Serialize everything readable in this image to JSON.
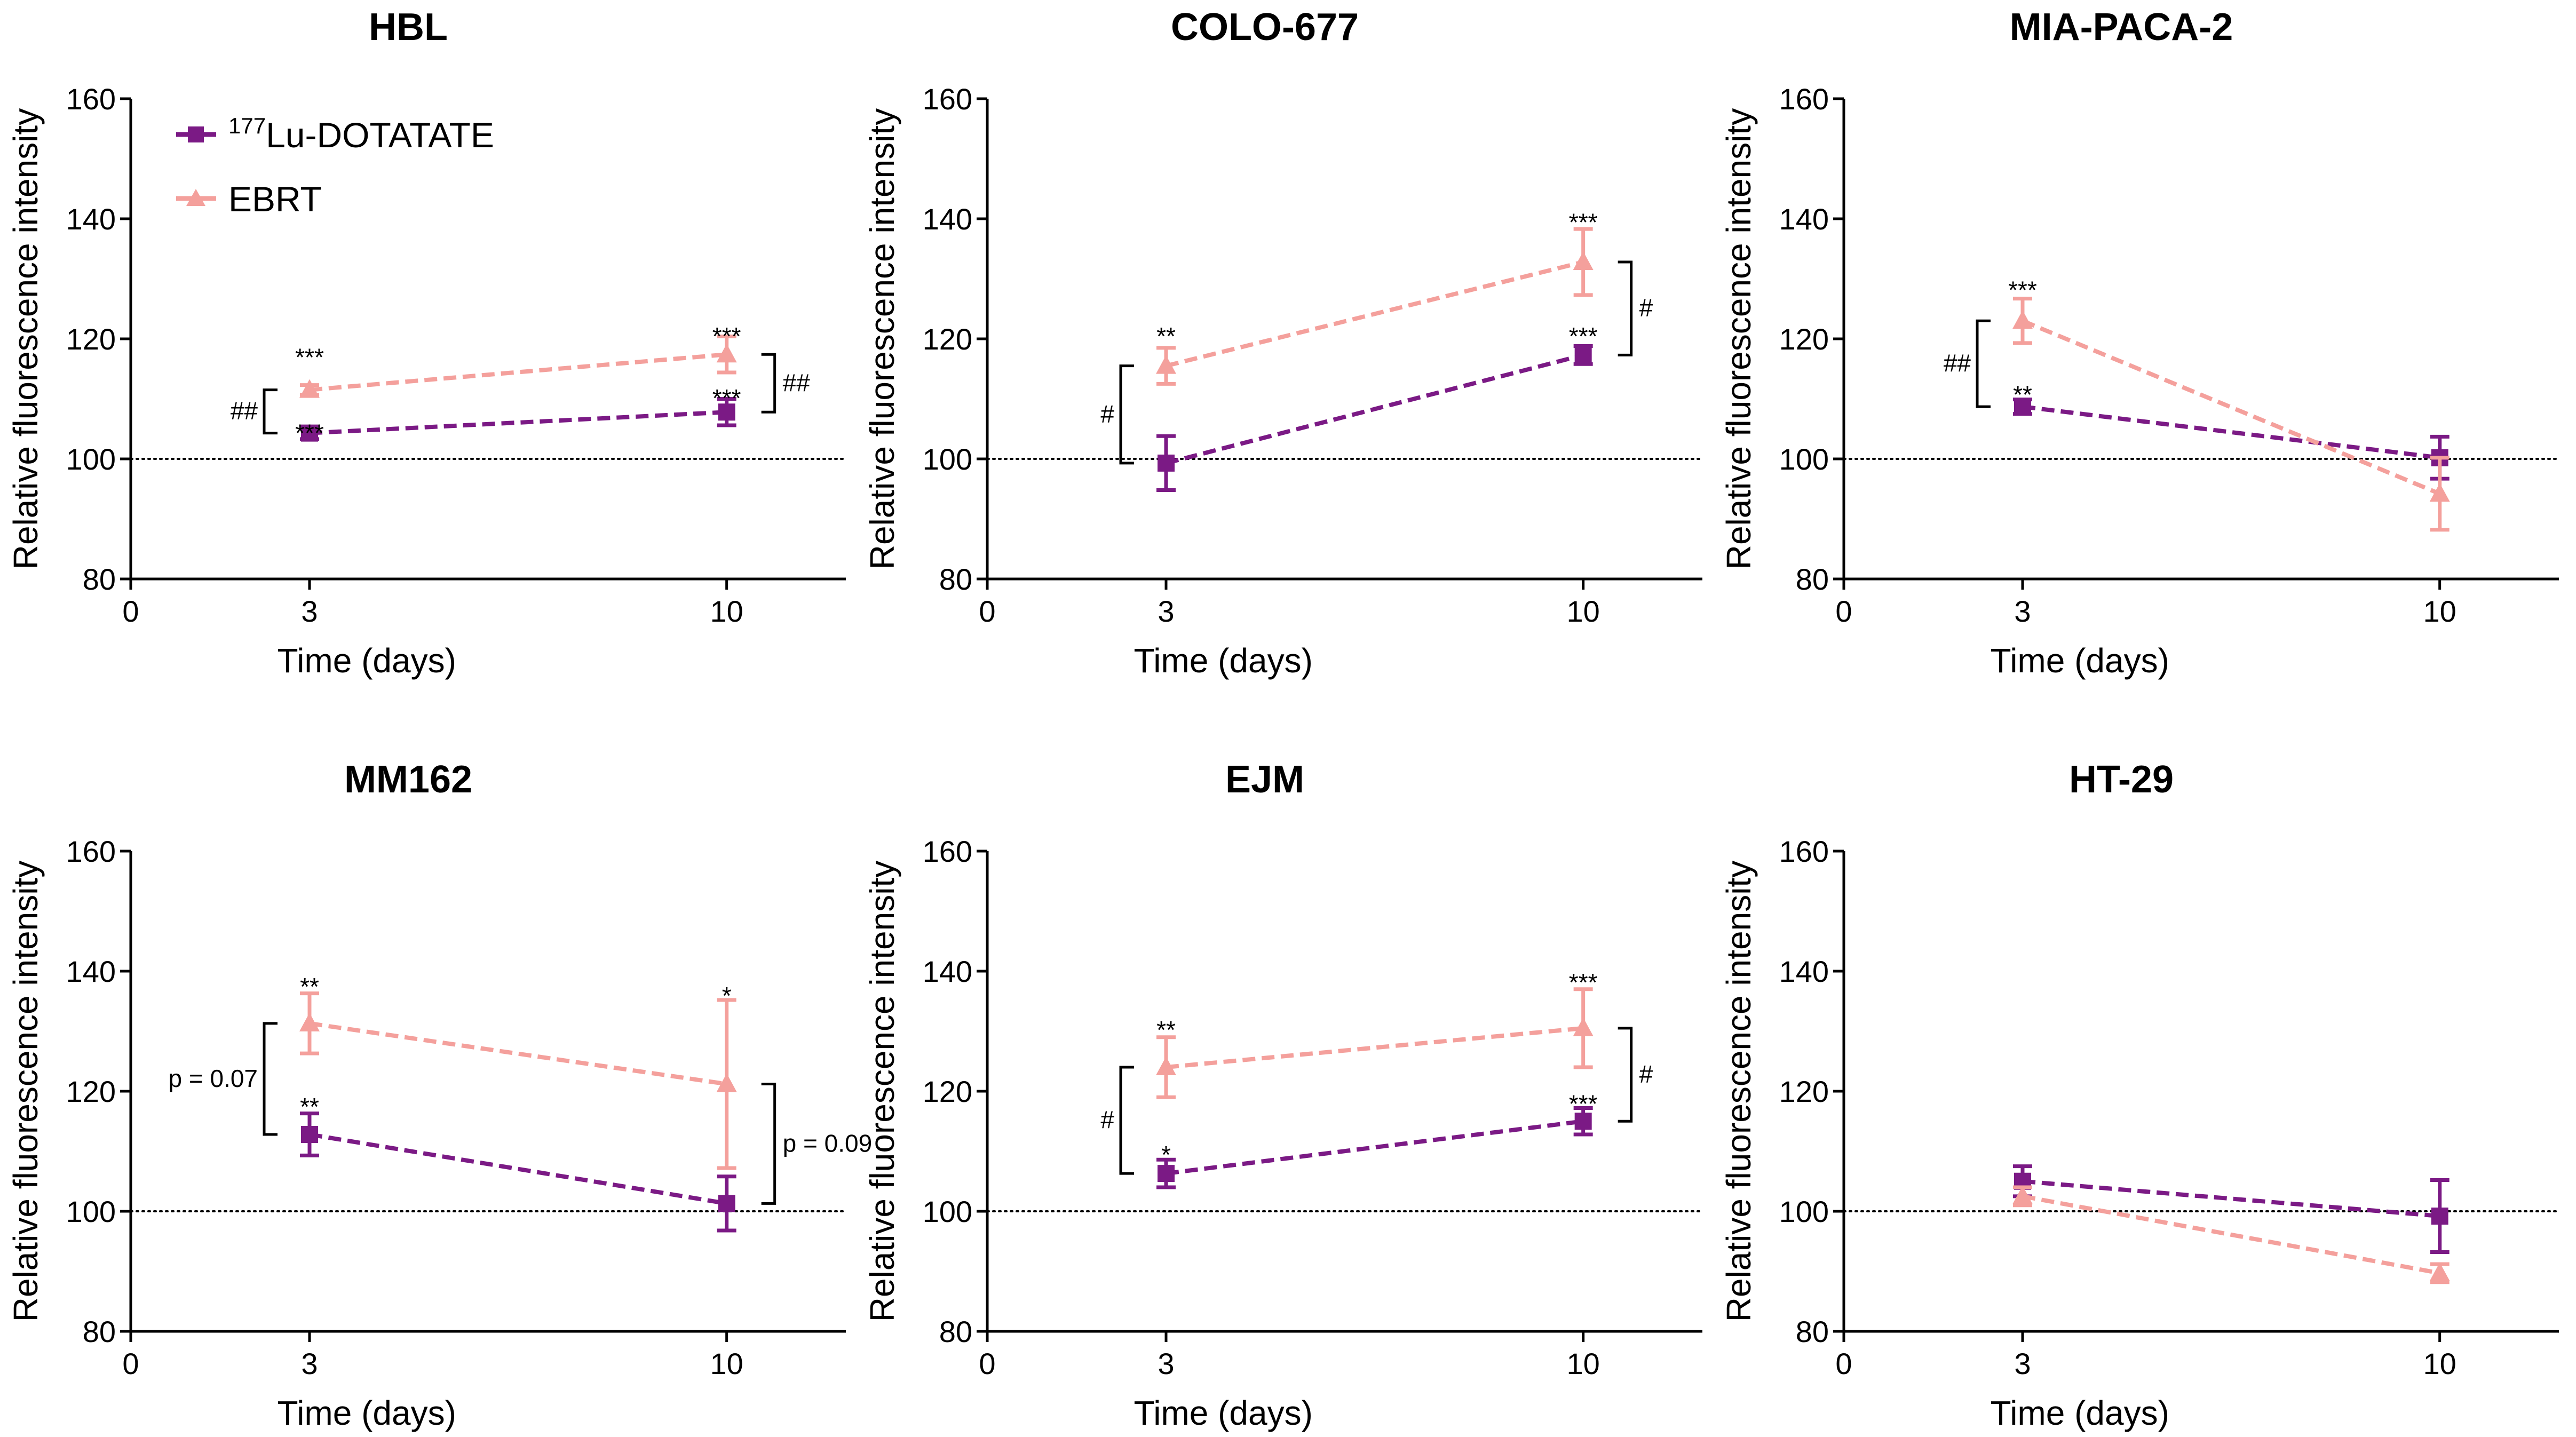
{
  "colors": {
    "lu": "#7b1a85",
    "ebrt": "#f4a09c",
    "axis": "#000000"
  },
  "legend": {
    "lu_superscript": "177",
    "lu_label": "Lu-DOTATATE",
    "ebrt_label": "EBRT",
    "lu_marker": "square-icon",
    "ebrt_marker": "triangle-icon"
  },
  "chart_data": [
    {
      "type": "line",
      "title": "HBL",
      "xlabel": "Time (days)",
      "ylabel": "Relative fluorescence intensity",
      "xlim": [
        0,
        12
      ],
      "ylim": [
        80,
        160
      ],
      "xticks": [
        0,
        3,
        10
      ],
      "xtick_labels": [
        "0",
        "3",
        "10"
      ],
      "yticks": [
        80,
        100,
        120,
        140,
        160
      ],
      "ytick_labels": [
        "80",
        "100",
        "120",
        "140",
        "160"
      ],
      "reference_line": 100,
      "series": [
        {
          "name": "177Lu-DOTATATE",
          "x": [
            3,
            10
          ],
          "values": [
            104.3,
            107.8
          ],
          "errors": [
            1.0,
            2.2
          ],
          "marker": "square"
        },
        {
          "name": "EBRT",
          "x": [
            3,
            10
          ],
          "values": [
            111.5,
            117.4
          ],
          "errors": [
            0.8,
            3.0
          ],
          "marker": "triangle"
        }
      ],
      "annotations": [
        {
          "text": "***",
          "x": 3,
          "y": 118,
          "offset": 0
        },
        {
          "text": "***",
          "x": 3,
          "y": 105.4,
          "offset": 0
        },
        {
          "text": "***",
          "x": 10,
          "y": 121.5,
          "offset": 0
        },
        {
          "text": "***",
          "x": 10,
          "y": 111.2,
          "offset": 0
        }
      ],
      "brackets": [
        {
          "x": 3,
          "y1": 104.3,
          "y2": 111.5,
          "side": "left",
          "label": "##"
        },
        {
          "x": 10,
          "y1": 107.8,
          "y2": 117.4,
          "side": "right",
          "label": "##"
        }
      ]
    },
    {
      "type": "line",
      "title": "COLO-677",
      "xlabel": "Time (days)",
      "ylabel": "Relative fluorescence intensity",
      "xlim": [
        0,
        12
      ],
      "ylim": [
        80,
        160
      ],
      "xticks": [
        0,
        3,
        10
      ],
      "xtick_labels": [
        "0",
        "3",
        "10"
      ],
      "yticks": [
        80,
        100,
        120,
        140,
        160
      ],
      "ytick_labels": [
        "80",
        "100",
        "120",
        "140",
        "160"
      ],
      "reference_line": 100,
      "series": [
        {
          "name": "177Lu-DOTATATE",
          "x": [
            3,
            10
          ],
          "values": [
            99.3,
            117.3
          ],
          "errors": [
            4.5,
            1.5
          ],
          "marker": "square"
        },
        {
          "name": "EBRT",
          "x": [
            3,
            10
          ],
          "values": [
            115.5,
            132.8
          ],
          "errors": [
            3.0,
            5.5
          ],
          "marker": "triangle"
        }
      ],
      "annotations": [
        {
          "text": "**",
          "x": 3,
          "y": 121.5,
          "offset": 0
        },
        {
          "text": "***",
          "x": 10,
          "y": 140.5,
          "offset": 0
        },
        {
          "text": "***",
          "x": 10,
          "y": 121.5,
          "offset": 0
        }
      ],
      "brackets": [
        {
          "x": 3,
          "y1": 99.3,
          "y2": 115.5,
          "side": "left",
          "label": "#"
        },
        {
          "x": 10,
          "y1": 117.3,
          "y2": 132.8,
          "side": "right",
          "label": "#"
        }
      ]
    },
    {
      "type": "line",
      "title": "MIA-PACA-2",
      "xlabel": "Time (days)",
      "ylabel": "Relative fluorescence intensity",
      "xlim": [
        0,
        12
      ],
      "ylim": [
        80,
        160
      ],
      "xticks": [
        0,
        3,
        10
      ],
      "xtick_labels": [
        "0",
        "3",
        "10"
      ],
      "yticks": [
        80,
        100,
        120,
        140,
        160
      ],
      "ytick_labels": [
        "80",
        "100",
        "120",
        "140",
        "160"
      ],
      "reference_line": 100,
      "series": [
        {
          "name": "177Lu-DOTATATE",
          "x": [
            3,
            10
          ],
          "values": [
            108.7,
            100.2
          ],
          "errors": [
            1.2,
            3.5
          ],
          "marker": "square"
        },
        {
          "name": "EBRT",
          "x": [
            3,
            10
          ],
          "values": [
            123.0,
            94.2
          ],
          "errors": [
            3.7,
            6.0
          ],
          "marker": "triangle"
        }
      ],
      "annotations": [
        {
          "text": "***",
          "x": 3,
          "y": 129.2,
          "offset": 0
        },
        {
          "text": "**",
          "x": 3,
          "y": 111.8,
          "offset": 0
        }
      ],
      "brackets": [
        {
          "x": 3,
          "y1": 108.7,
          "y2": 123.0,
          "side": "left",
          "label": "##"
        }
      ]
    },
    {
      "type": "line",
      "title": "MM162",
      "xlabel": "Time (days)",
      "ylabel": "Relative fluorescence intensity",
      "xlim": [
        0,
        12
      ],
      "ylim": [
        80,
        160
      ],
      "xticks": [
        0,
        3,
        10
      ],
      "xtick_labels": [
        "0",
        "3",
        "10"
      ],
      "yticks": [
        80,
        100,
        120,
        140,
        160
      ],
      "ytick_labels": [
        "80",
        "100",
        "120",
        "140",
        "160"
      ],
      "reference_line": 100,
      "series": [
        {
          "name": "177Lu-DOTATATE",
          "x": [
            3,
            10
          ],
          "values": [
            112.8,
            101.3
          ],
          "errors": [
            3.5,
            4.5
          ],
          "marker": "square"
        },
        {
          "name": "EBRT",
          "x": [
            3,
            10
          ],
          "values": [
            131.3,
            121.2
          ],
          "errors": [
            5.0,
            14.0
          ],
          "marker": "triangle"
        }
      ],
      "annotations": [
        {
          "text": "**",
          "x": 3,
          "y": 138.5,
          "offset": 0
        },
        {
          "text": "**",
          "x": 3,
          "y": 118.5,
          "offset": 0
        },
        {
          "text": "*",
          "x": 10,
          "y": 137.0,
          "offset": 0
        }
      ],
      "brackets": [
        {
          "x": 3,
          "y1": 112.8,
          "y2": 131.3,
          "side": "left",
          "label": "p = 0.07"
        },
        {
          "x": 10,
          "y1": 101.3,
          "y2": 121.2,
          "side": "right",
          "label": "p = 0.09"
        }
      ]
    },
    {
      "type": "line",
      "title": "EJM",
      "xlabel": "Time (days)",
      "ylabel": "Relative fluorescence intensity",
      "xlim": [
        0,
        12
      ],
      "ylim": [
        80,
        160
      ],
      "xticks": [
        0,
        3,
        10
      ],
      "xtick_labels": [
        "0",
        "3",
        "10"
      ],
      "yticks": [
        80,
        100,
        120,
        140,
        160
      ],
      "ytick_labels": [
        "80",
        "100",
        "120",
        "140",
        "160"
      ],
      "reference_line": 100,
      "series": [
        {
          "name": "177Lu-DOTATATE",
          "x": [
            3,
            10
          ],
          "values": [
            106.3,
            115.0
          ],
          "errors": [
            2.3,
            2.2
          ],
          "marker": "square"
        },
        {
          "name": "EBRT",
          "x": [
            3,
            10
          ],
          "values": [
            124.0,
            130.5
          ],
          "errors": [
            5.0,
            6.5
          ],
          "marker": "triangle"
        }
      ],
      "annotations": [
        {
          "text": "**",
          "x": 3,
          "y": 131.3,
          "offset": 0
        },
        {
          "text": "*",
          "x": 3,
          "y": 110.5,
          "offset": 0
        },
        {
          "text": "***",
          "x": 10,
          "y": 139.2,
          "offset": 0
        },
        {
          "text": "***",
          "x": 10,
          "y": 119.0,
          "offset": 0
        }
      ],
      "brackets": [
        {
          "x": 3,
          "y1": 106.3,
          "y2": 124.0,
          "side": "left",
          "label": "#"
        },
        {
          "x": 10,
          "y1": 115.0,
          "y2": 130.5,
          "side": "right",
          "label": "#"
        }
      ]
    },
    {
      "type": "line",
      "title": "HT-29",
      "xlabel": "Time (days)",
      "ylabel": "Relative fluorescence intensity",
      "xlim": [
        0,
        12
      ],
      "ylim": [
        80,
        160
      ],
      "xticks": [
        0,
        3,
        10
      ],
      "xtick_labels": [
        "0",
        "3",
        "10"
      ],
      "yticks": [
        80,
        100,
        120,
        140,
        160
      ],
      "ytick_labels": [
        "80",
        "100",
        "120",
        "140",
        "160"
      ],
      "reference_line": 100,
      "series": [
        {
          "name": "177Lu-DOTATATE",
          "x": [
            3,
            10
          ],
          "values": [
            105.0,
            99.2
          ],
          "errors": [
            2.5,
            6.0
          ],
          "marker": "square"
        },
        {
          "name": "EBRT",
          "x": [
            3,
            10
          ],
          "values": [
            102.5,
            89.7
          ],
          "errors": [
            1.5,
            1.5
          ],
          "marker": "triangle"
        }
      ],
      "annotations": [],
      "brackets": []
    }
  ]
}
